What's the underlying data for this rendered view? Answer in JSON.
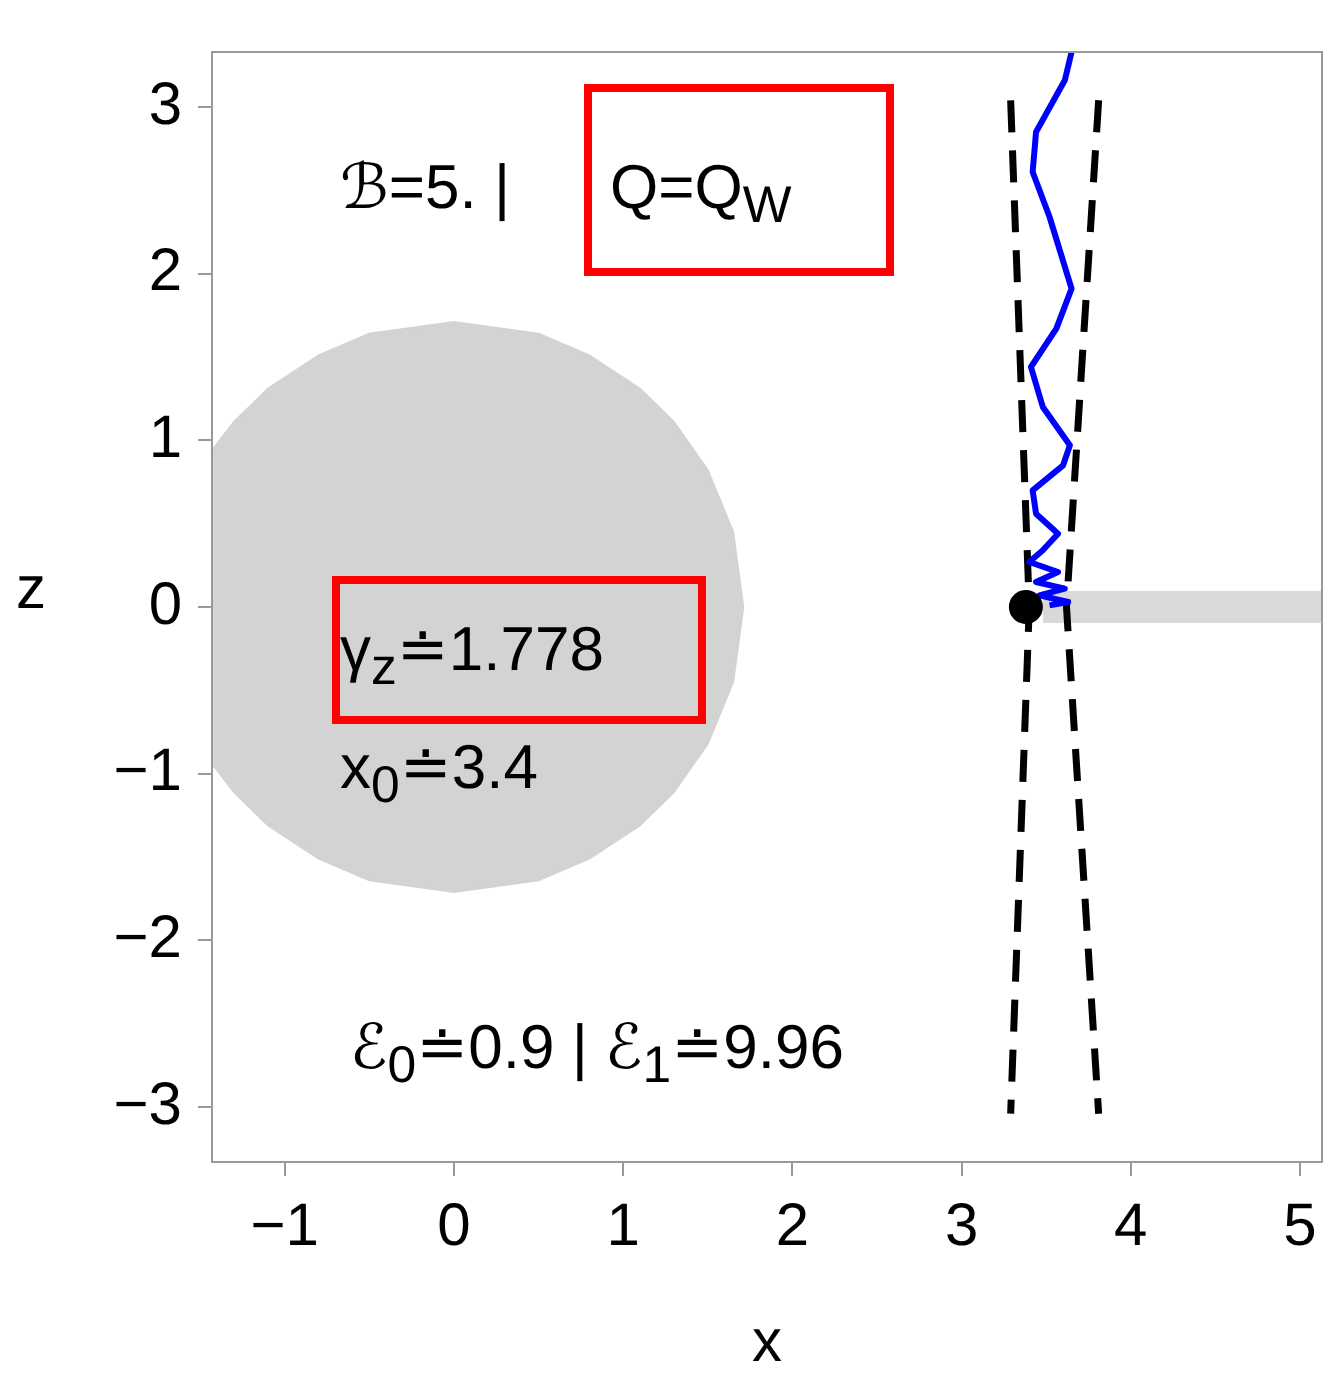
{
  "chart_data": {
    "type": "line",
    "xlabel": "x",
    "ylabel": "z",
    "xlim": [
      -1.43,
      5.13
    ],
    "ylim": [
      -3.33,
      3.33
    ],
    "xticks": [
      -1,
      0,
      1,
      2,
      3,
      4,
      5
    ],
    "yticks": [
      -3,
      -2,
      -1,
      0,
      1,
      2,
      3
    ],
    "grid": false,
    "legend": false,
    "annotations": [
      "ℬ=5. |",
      "Q=Q$_{W}$",
      "γ$_{z}$≐1.778",
      "x$_{0}$≐3.4",
      "ℰ$_{0}$≐0.9 | ℰ$_{1}$≐9.96"
    ],
    "series": [
      {
        "type": "area",
        "color": "#d3d3d3",
        "x": [
          -1.43,
          -1.3,
          -1.1,
          -0.8,
          -0.5,
          0,
          0.5,
          0.8,
          1.1,
          1.3,
          1.5,
          1.65,
          1.71,
          1.65,
          1.5,
          1.3,
          1.1,
          0.8,
          0.5,
          0,
          -0.5,
          -0.8,
          -1.1,
          -1.3,
          -1.43
        ],
        "values": [
          0.94,
          1.11,
          1.31,
          1.51,
          1.64,
          1.71,
          1.64,
          1.51,
          1.31,
          1.11,
          0.82,
          0.45,
          0,
          -0.45,
          -0.82,
          -1.11,
          -1.31,
          -1.51,
          -1.64,
          -1.71,
          -1.64,
          -1.51,
          -1.31,
          -1.11,
          -0.94
        ]
      },
      {
        "color": "#d9d9d9",
        "x": [
          3.48,
          5.13
        ],
        "values": [
          0,
          0
        ]
      },
      {
        "color": "#000000",
        "line_style": "dashed",
        "x": [
          3.29,
          3.4,
          3.29
        ],
        "values": [
          3.04,
          0,
          -3.04
        ]
      },
      {
        "color": "#000000",
        "line_style": "dashed",
        "x": [
          3.81,
          3.62,
          3.81
        ],
        "values": [
          3.04,
          0,
          -3.04
        ]
      },
      {
        "color": "#0000ff",
        "x": [
          3.65,
          3.61,
          3.44,
          3.42,
          3.52,
          3.65,
          3.56,
          3.41,
          3.48,
          3.64,
          3.6,
          3.42,
          3.44,
          3.57,
          3.48,
          3.4,
          3.57,
          3.44,
          3.61,
          3.46,
          3.63,
          3.52
        ],
        "values": [
          3.33,
          3.16,
          2.85,
          2.61,
          2.34,
          1.91,
          1.67,
          1.44,
          1.2,
          0.97,
          0.85,
          0.7,
          0.56,
          0.44,
          0.34,
          0.27,
          0.21,
          0.15,
          0.11,
          0.07,
          0.03,
          0.01
        ]
      },
      {
        "type": "scatter",
        "color": "#000000",
        "marker": "circle",
        "x": [
          3.38
        ],
        "values": [
          0
        ]
      }
    ]
  }
}
